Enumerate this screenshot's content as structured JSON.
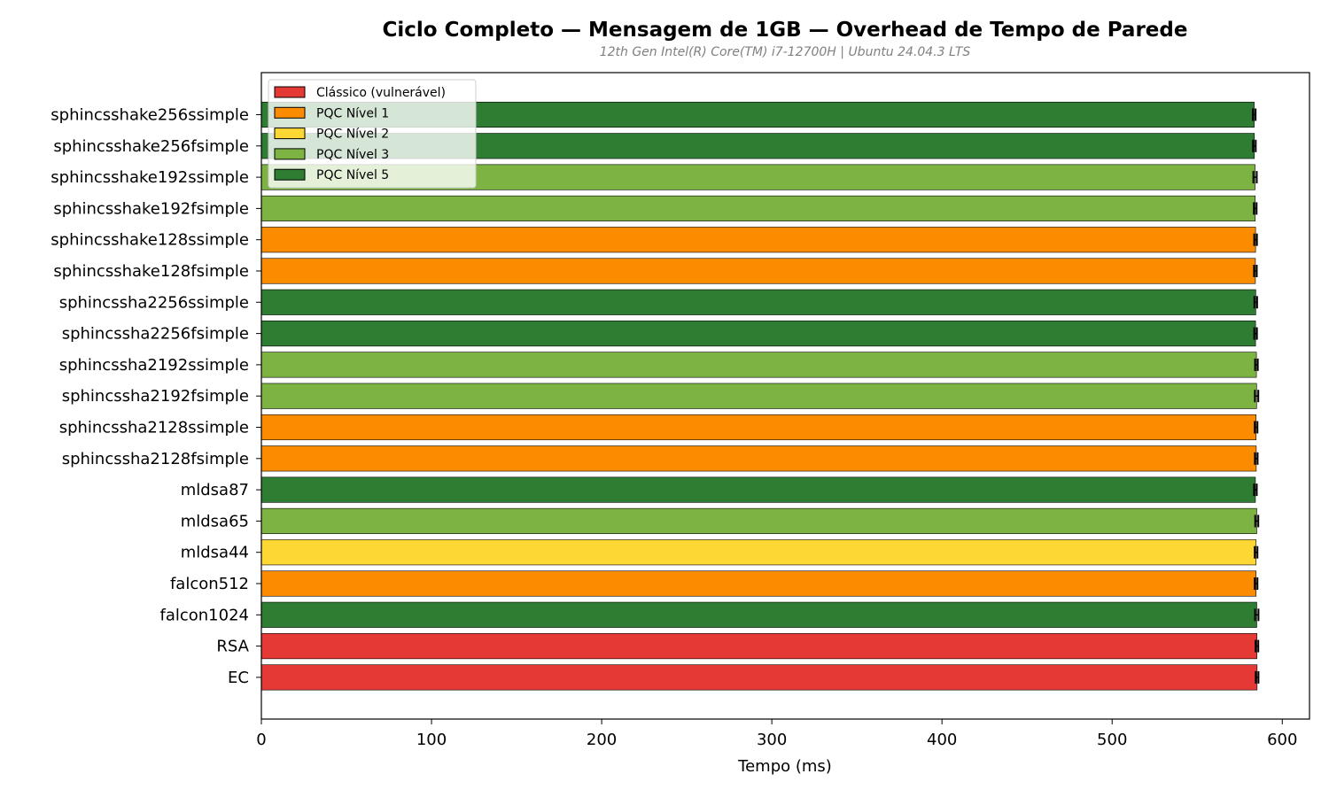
{
  "chart_data": {
    "type": "bar",
    "orientation": "horizontal",
    "title": "Ciclo Completo — Mensagem de 1GB — Overhead de Tempo de Parede",
    "subtitle": "12th Gen Intel(R) Core(TM) i7-12700H | Ubuntu 24.04.3 LTS",
    "xlabel": "Tempo (ms)",
    "ylabel": "",
    "xlim": [
      0,
      616
    ],
    "xticks": [
      0,
      100,
      200,
      300,
      400,
      500,
      600
    ],
    "grid": false,
    "legend_position": "top-left",
    "legend": [
      {
        "label": "Clássico (vulnerável)",
        "color": "#e53935"
      },
      {
        "label": "PQC Nível 1",
        "color": "#fb8c00"
      },
      {
        "label": "PQC Nível 2",
        "color": "#fdd835"
      },
      {
        "label": "PQC Nível 3",
        "color": "#7cb342"
      },
      {
        "label": "PQC Nível 5",
        "color": "#2e7d32"
      }
    ],
    "categories": [
      "sphincsshake256ssimple",
      "sphincsshake256fsimple",
      "sphincsshake192ssimple",
      "sphincsshake192fsimple",
      "sphincsshake128ssimple",
      "sphincsshake128fsimple",
      "sphincssha2256ssimple",
      "sphincssha2256fsimple",
      "sphincssha2192ssimple",
      "sphincssha2192fsimple",
      "sphincssha2128ssimple",
      "sphincssha2128fsimple",
      "mldsa87",
      "mldsa65",
      "mldsa44",
      "falcon512",
      "falcon1024",
      "RSA",
      "EC"
    ],
    "values": [
      583.5,
      583.6,
      584.0,
      584.1,
      584.3,
      584.2,
      584.4,
      584.3,
      584.8,
      584.9,
      584.6,
      584.7,
      584.2,
      585.0,
      584.6,
      584.6,
      585.0,
      585.1,
      585.2
    ],
    "errors": [
      0.8,
      0.8,
      1.0,
      0.8,
      0.8,
      0.8,
      0.8,
      0.8,
      0.8,
      1.0,
      0.8,
      0.8,
      0.8,
      0.9,
      0.8,
      0.8,
      1.0,
      0.8,
      0.8
    ],
    "levels": [
      5,
      5,
      3,
      3,
      1,
      1,
      5,
      5,
      3,
      3,
      1,
      1,
      5,
      3,
      2,
      1,
      5,
      0,
      0
    ]
  }
}
